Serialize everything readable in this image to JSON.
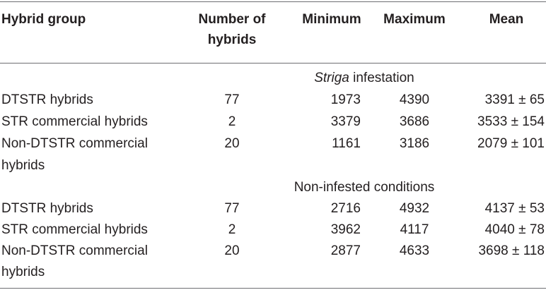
{
  "header": {
    "col1": "Hybrid group",
    "col2_line1": "Number of",
    "col2_line2": "hybrids",
    "col3": "Minimum",
    "col4": "Maximum",
    "col5": "Mean"
  },
  "sections": [
    {
      "title_italic": "Striga",
      "title_rest": " infestation",
      "rows": [
        {
          "name_line1": "DTSTR hybrids",
          "name_line2": "",
          "n": "77",
          "min": "1973",
          "max": "4390",
          "mean": "3391 ± 65"
        },
        {
          "name_line1": "STR commercial hybrids",
          "name_line2": "",
          "n": "2",
          "min": "3379",
          "max": "3686",
          "mean": "3533 ± 154"
        },
        {
          "name_line1": "Non-DTSTR commercial",
          "name_line2": "hybrids",
          "n": "20",
          "min": "1161",
          "max": "3186",
          "mean": "2079 ± 101"
        }
      ]
    },
    {
      "title_italic": "",
      "title_rest": "Non-infested conditions",
      "rows": [
        {
          "name_line1": "DTSTR hybrids",
          "name_line2": "",
          "n": "77",
          "min": "2716",
          "max": "4932",
          "mean": "4137 ± 53"
        },
        {
          "name_line1": "STR commercial hybrids",
          "name_line2": "",
          "n": "2",
          "min": "3962",
          "max": "4117",
          "mean": "4040 ± 78"
        },
        {
          "name_line1": "Non-DTSTR commercial",
          "name_line2": "hybrids",
          "n": "20",
          "min": "2877",
          "max": "4633",
          "mean": "3698 ± 118"
        }
      ]
    }
  ]
}
